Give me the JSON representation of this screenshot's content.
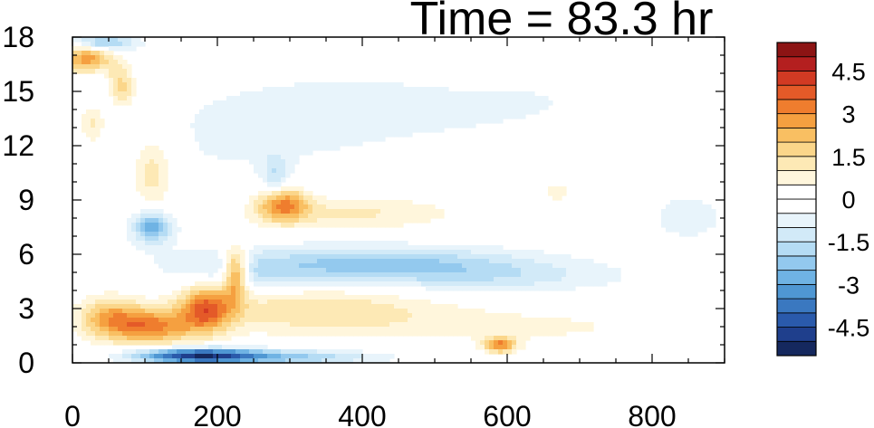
{
  "chart_data": {
    "type": "heatmap",
    "title": "Time = 83.3 hr",
    "xlabel": "",
    "ylabel": "",
    "xlim": [
      0,
      900
    ],
    "ylim": [
      0,
      18
    ],
    "x_ticks": [
      "0",
      "200",
      "400",
      "600",
      "800"
    ],
    "x_tick_values": [
      0,
      200,
      400,
      600,
      800
    ],
    "y_ticks": [
      "0",
      "3",
      "6",
      "9",
      "12",
      "15",
      "18"
    ],
    "y_tick_values": [
      0,
      3,
      6,
      9,
      12,
      15,
      18
    ],
    "colorbar": {
      "levels": [
        -5.5,
        -5,
        -4.5,
        -4,
        -3.5,
        -3,
        -2.5,
        -2,
        -1.5,
        -1,
        -0.5,
        0,
        0.5,
        1,
        1.5,
        2,
        2.5,
        3,
        3.5,
        4,
        4.5,
        5,
        5.5
      ],
      "colors": [
        "#15285e",
        "#1f3f8c",
        "#2a5aab",
        "#3a78c0",
        "#4f97d3",
        "#6fb3e4",
        "#93c9ee",
        "#b5dcf4",
        "#d2eaf8",
        "#e8f4fb",
        "#ffffff",
        "#ffffff",
        "#fff6dc",
        "#fde9b5",
        "#fbd68a",
        "#f9bf62",
        "#f5a040",
        "#ef7d2e",
        "#e45a28",
        "#d23a23",
        "#b41f1f",
        "#8c1414"
      ],
      "labels": [
        "4.5",
        "3",
        "1.5",
        "0",
        "-1.5",
        "-3",
        "-4.5"
      ],
      "label_values": [
        4.5,
        3,
        1.5,
        0,
        -1.5,
        -3,
        -4.5
      ]
    },
    "features": [
      {
        "x": 50,
        "y": 2.5,
        "v": 2.2,
        "sx": 30,
        "sy": 0.8
      },
      {
        "x": 110,
        "y": 2.0,
        "v": 3.0,
        "sx": 40,
        "sy": 0.7
      },
      {
        "x": 185,
        "y": 3.0,
        "v": 3.2,
        "sx": 25,
        "sy": 0.9
      },
      {
        "x": 225,
        "y": 5.0,
        "v": 3.5,
        "sx": 12,
        "sy": 1.0
      },
      {
        "x": 330,
        "y": 3.0,
        "v": 1.4,
        "sx": 120,
        "sy": 0.9
      },
      {
        "x": 600,
        "y": 2.0,
        "v": 0.6,
        "sx": 200,
        "sy": 0.8
      },
      {
        "x": 290,
        "y": 8.8,
        "v": 3.0,
        "sx": 25,
        "sy": 0.7
      },
      {
        "x": 380,
        "y": 8.3,
        "v": 1.3,
        "sx": 110,
        "sy": 0.7
      },
      {
        "x": 20,
        "y": 16.8,
        "v": 3.0,
        "sx": 25,
        "sy": 0.6
      },
      {
        "x": 65,
        "y": 15.2,
        "v": 2.4,
        "sx": 15,
        "sy": 0.9
      },
      {
        "x": 30,
        "y": 13.5,
        "v": 2.0,
        "sx": 15,
        "sy": 1.0
      },
      {
        "x": 110,
        "y": 10.5,
        "v": 1.6,
        "sx": 20,
        "sy": 1.5
      },
      {
        "x": 590,
        "y": 1.0,
        "v": 3.0,
        "sx": 15,
        "sy": 0.3
      },
      {
        "x": 170,
        "y": 0.4,
        "v": -4.5,
        "sx": 60,
        "sy": 0.3
      },
      {
        "x": 300,
        "y": 0.3,
        "v": -2.0,
        "sx": 90,
        "sy": 0.3
      },
      {
        "x": 420,
        "y": 5.4,
        "v": -2.2,
        "sx": 160,
        "sy": 0.7
      },
      {
        "x": 250,
        "y": 4.6,
        "v": -0.7,
        "sx": 50,
        "sy": 0.6
      },
      {
        "x": 600,
        "y": 4.6,
        "v": -0.8,
        "sx": 120,
        "sy": 0.6
      },
      {
        "x": 110,
        "y": 7.5,
        "v": -2.8,
        "sx": 18,
        "sy": 0.6
      },
      {
        "x": 40,
        "y": 17.7,
        "v": -2.5,
        "sx": 30,
        "sy": 0.3
      },
      {
        "x": 40,
        "y": 14.5,
        "v": -1.2,
        "sx": 20,
        "sy": 1.2
      },
      {
        "x": 580,
        "y": 14.5,
        "v": -0.5,
        "sx": 300,
        "sy": 2.5
      },
      {
        "x": 200,
        "y": 11.0,
        "v": -0.4,
        "sx": 200,
        "sy": 4.0
      },
      {
        "x": 850,
        "y": 8.0,
        "v": -0.6,
        "sx": 60,
        "sy": 1.5
      },
      {
        "x": 280,
        "y": 10.3,
        "v": -1.3,
        "sx": 12,
        "sy": 0.9
      },
      {
        "x": 560,
        "y": 16.5,
        "v": 0.7,
        "sx": 60,
        "sy": 0.6
      },
      {
        "x": 670,
        "y": 9.5,
        "v": 0.7,
        "sx": 20,
        "sy": 0.6
      }
    ]
  }
}
